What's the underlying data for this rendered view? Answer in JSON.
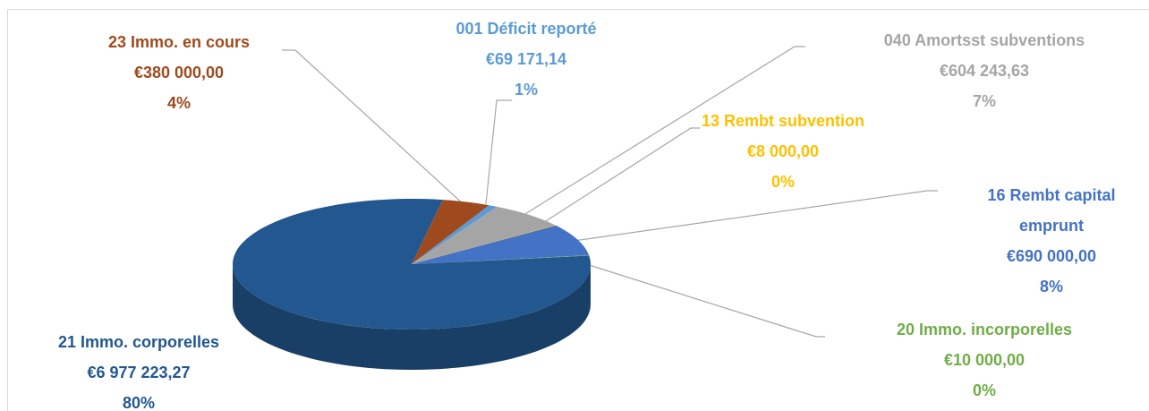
{
  "chart_data": {
    "type": "pie",
    "categories": [
      "23 Immo. en cours",
      "001 Déficit reporté",
      "040 Amortsst subventions",
      "13 Rembt subvention",
      "16 Rembt capital emprunt",
      "20 Immo. incorporelles",
      "21 Immo. corporelles"
    ],
    "values": [
      380000,
      69171.14,
      604243.63,
      8000,
      690000,
      10000,
      6977223.27
    ],
    "value_labels": [
      "€380 000,00",
      "€69 171,14",
      "€604 243,63",
      "€8 000,00",
      "€690 000,00",
      "€10 000,00",
      "€6 977 223,27"
    ],
    "percents": [
      4,
      1,
      7,
      0,
      8,
      0,
      80
    ],
    "percent_labels": [
      "4%",
      "1%",
      "7%",
      "0%",
      "8%",
      "0%",
      "80%"
    ],
    "colors": [
      "#9e4a1e",
      "#5b9bd5",
      "#a5a5a5",
      "#ffc000",
      "#4472c4",
      "#70ad47",
      "#23578f"
    ]
  }
}
